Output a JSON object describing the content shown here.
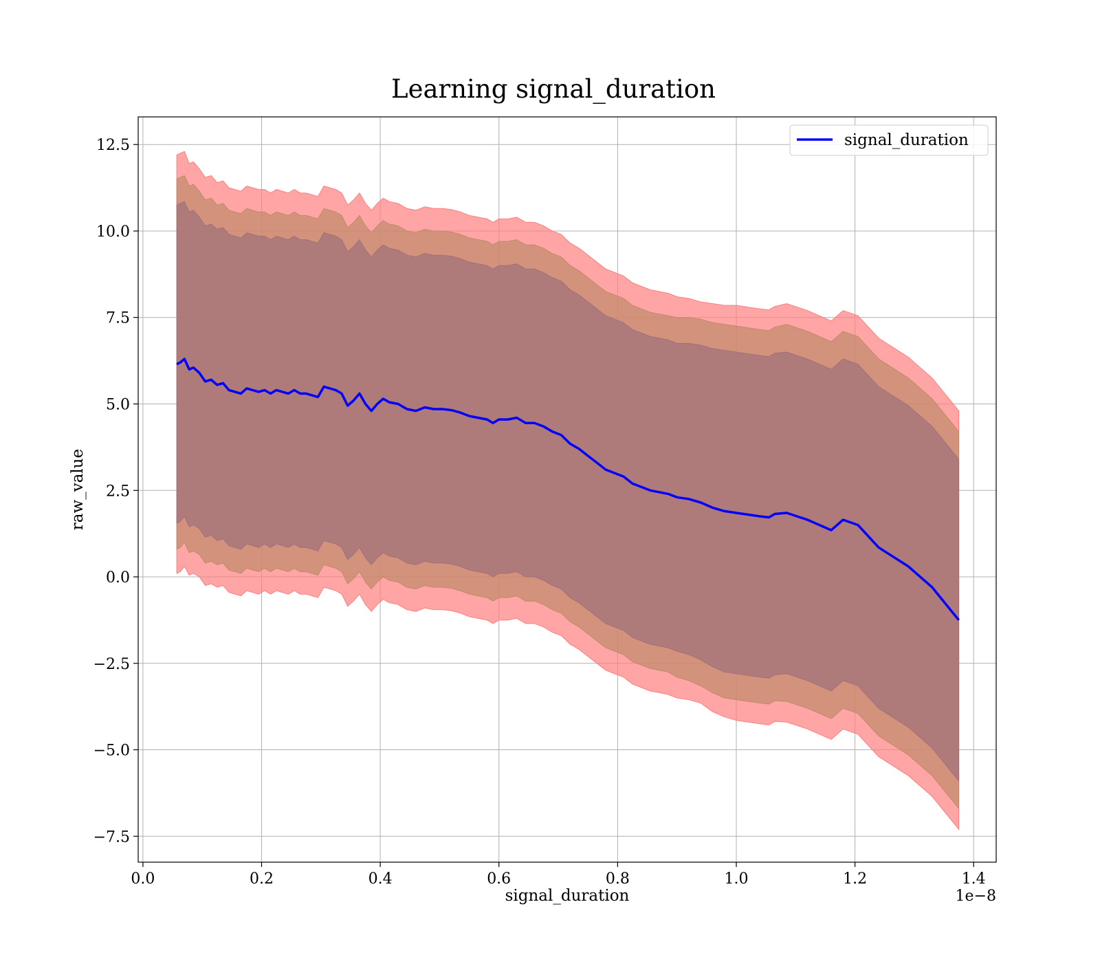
{
  "chart_data": {
    "type": "line",
    "title": "Learning signal_duration",
    "xlabel": "signal_duration",
    "ylabel": "raw_value",
    "x_offset_label": "1e−8",
    "xlim": [
      -0.008,
      1.438
    ],
    "ylim": [
      -8.25,
      13.3
    ],
    "x_ticks": [
      0.0,
      0.2,
      0.4,
      0.6,
      0.8,
      1.0,
      1.2,
      1.4
    ],
    "x_tick_labels": [
      "0.0",
      "0.2",
      "0.4",
      "0.6",
      "0.8",
      "1.0",
      "1.2",
      "1.4"
    ],
    "y_ticks": [
      -7.5,
      -5.0,
      -2.5,
      0.0,
      2.5,
      5.0,
      7.5,
      10.0,
      12.5
    ],
    "y_tick_labels": [
      "−7.5",
      "−5.0",
      "−2.5",
      "0.0",
      "2.5",
      "5.0",
      "7.5",
      "10.0",
      "12.5"
    ],
    "grid": true,
    "legend_position": "top-right",
    "x": [
      0.057,
      0.063,
      0.07,
      0.078,
      0.085,
      0.095,
      0.105,
      0.115,
      0.125,
      0.135,
      0.145,
      0.155,
      0.165,
      0.175,
      0.185,
      0.195,
      0.205,
      0.215,
      0.225,
      0.235,
      0.245,
      0.255,
      0.265,
      0.275,
      0.285,
      0.295,
      0.305,
      0.315,
      0.325,
      0.335,
      0.345,
      0.355,
      0.365,
      0.375,
      0.385,
      0.395,
      0.405,
      0.415,
      0.43,
      0.445,
      0.46,
      0.475,
      0.49,
      0.505,
      0.52,
      0.535,
      0.55,
      0.565,
      0.58,
      0.59,
      0.6,
      0.615,
      0.63,
      0.645,
      0.66,
      0.675,
      0.69,
      0.705,
      0.72,
      0.735,
      0.75,
      0.765,
      0.78,
      0.795,
      0.81,
      0.825,
      0.84,
      0.855,
      0.87,
      0.885,
      0.9,
      0.92,
      0.94,
      0.96,
      0.98,
      1.0,
      1.02,
      1.04,
      1.055,
      1.065,
      1.085,
      1.12,
      1.16,
      1.18,
      1.205,
      1.24,
      1.29,
      1.33,
      1.375
    ],
    "series": [
      {
        "name": "signal_duration",
        "color": "#0000ff",
        "values": [
          6.15,
          6.2,
          6.3,
          6.0,
          6.05,
          5.9,
          5.65,
          5.7,
          5.55,
          5.6,
          5.4,
          5.35,
          5.3,
          5.45,
          5.4,
          5.35,
          5.4,
          5.3,
          5.4,
          5.35,
          5.3,
          5.4,
          5.3,
          5.3,
          5.25,
          5.2,
          5.5,
          5.45,
          5.4,
          5.3,
          4.95,
          5.1,
          5.3,
          5.0,
          4.8,
          5.0,
          5.15,
          5.05,
          5.0,
          4.85,
          4.8,
          4.9,
          4.85,
          4.85,
          4.82,
          4.75,
          4.65,
          4.6,
          4.55,
          4.45,
          4.55,
          4.55,
          4.6,
          4.45,
          4.45,
          4.35,
          4.2,
          4.1,
          3.85,
          3.7,
          3.5,
          3.3,
          3.1,
          3.0,
          2.9,
          2.7,
          2.6,
          2.5,
          2.45,
          2.4,
          2.3,
          2.25,
          2.15,
          2.0,
          1.9,
          1.85,
          1.8,
          1.75,
          1.72,
          1.82,
          1.85,
          1.65,
          1.35,
          1.65,
          1.5,
          0.85,
          0.3,
          -0.3,
          -1.25
        ]
      }
    ],
    "bands": [
      {
        "name": "outer",
        "color": "#ff7f7f",
        "half_width": [
          6.05,
          6.05,
          6.0,
          5.95,
          5.95,
          5.9,
          5.9,
          5.9,
          5.85,
          5.85,
          5.85,
          5.85,
          5.85,
          5.85,
          5.85,
          5.85,
          5.8,
          5.8,
          5.8,
          5.8,
          5.8,
          5.8,
          5.8,
          5.8,
          5.8,
          5.8,
          5.8,
          5.8,
          5.8,
          5.8,
          5.8,
          5.8,
          5.8,
          5.8,
          5.8,
          5.8,
          5.8,
          5.8,
          5.8,
          5.8,
          5.8,
          5.8,
          5.8,
          5.8,
          5.8,
          5.8,
          5.8,
          5.8,
          5.8,
          5.8,
          5.8,
          5.8,
          5.8,
          5.8,
          5.8,
          5.8,
          5.8,
          5.8,
          5.8,
          5.8,
          5.8,
          5.8,
          5.8,
          5.8,
          5.8,
          5.8,
          5.8,
          5.8,
          5.8,
          5.8,
          5.8,
          5.8,
          5.8,
          5.9,
          5.95,
          6.0,
          6.0,
          6.0,
          6.0,
          6.0,
          6.05,
          6.05,
          6.05,
          6.05,
          6.05,
          6.05,
          6.05,
          6.05,
          6.05
        ]
      },
      {
        "name": "middle",
        "color": "#c08a6a",
        "half_width": [
          5.35,
          5.35,
          5.3,
          5.3,
          5.3,
          5.25,
          5.25,
          5.25,
          5.2,
          5.2,
          5.2,
          5.2,
          5.2,
          5.2,
          5.2,
          5.2,
          5.15,
          5.15,
          5.15,
          5.15,
          5.15,
          5.15,
          5.15,
          5.15,
          5.15,
          5.15,
          5.15,
          5.15,
          5.15,
          5.15,
          5.15,
          5.15,
          5.15,
          5.15,
          5.15,
          5.15,
          5.15,
          5.15,
          5.15,
          5.15,
          5.15,
          5.15,
          5.15,
          5.15,
          5.15,
          5.15,
          5.15,
          5.15,
          5.15,
          5.15,
          5.15,
          5.15,
          5.15,
          5.15,
          5.15,
          5.15,
          5.15,
          5.15,
          5.15,
          5.15,
          5.15,
          5.15,
          5.15,
          5.15,
          5.15,
          5.15,
          5.15,
          5.15,
          5.15,
          5.15,
          5.2,
          5.25,
          5.3,
          5.35,
          5.4,
          5.4,
          5.4,
          5.4,
          5.4,
          5.4,
          5.45,
          5.45,
          5.45,
          5.45,
          5.45,
          5.45,
          5.45,
          5.45,
          5.45
        ]
      },
      {
        "name": "inner",
        "color": "#a0717a",
        "half_width": [
          4.6,
          4.6,
          4.55,
          4.55,
          4.55,
          4.5,
          4.5,
          4.5,
          4.5,
          4.5,
          4.5,
          4.5,
          4.5,
          4.5,
          4.5,
          4.5,
          4.45,
          4.45,
          4.45,
          4.45,
          4.45,
          4.45,
          4.45,
          4.45,
          4.45,
          4.45,
          4.45,
          4.45,
          4.45,
          4.45,
          4.45,
          4.45,
          4.45,
          4.45,
          4.45,
          4.45,
          4.45,
          4.45,
          4.45,
          4.45,
          4.45,
          4.45,
          4.45,
          4.45,
          4.45,
          4.45,
          4.45,
          4.45,
          4.45,
          4.45,
          4.45,
          4.45,
          4.45,
          4.45,
          4.45,
          4.45,
          4.45,
          4.45,
          4.45,
          4.45,
          4.45,
          4.45,
          4.45,
          4.45,
          4.45,
          4.45,
          4.45,
          4.45,
          4.45,
          4.45,
          4.45,
          4.5,
          4.55,
          4.6,
          4.65,
          4.65,
          4.65,
          4.65,
          4.65,
          4.65,
          4.65,
          4.65,
          4.65,
          4.65,
          4.65,
          4.65,
          4.65,
          4.65,
          4.65
        ]
      }
    ]
  }
}
